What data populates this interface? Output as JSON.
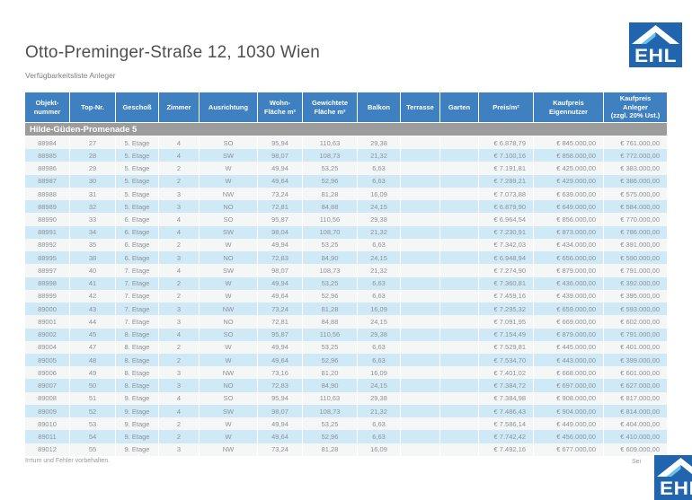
{
  "page": {
    "title": "Otto-Preminger-Straße 12, 1030 Wien",
    "subtitle": "Verfügbarkeitsliste Anleger",
    "footer_left": "Irrtum und Fehler vorbehalten.",
    "footer_right": "Sei"
  },
  "logo": {
    "text": "EHL"
  },
  "colors": {
    "header_bg": "#3f80c1",
    "section_bg": "#9c9c9c",
    "stripe_light": "#f5f6f6",
    "stripe_blue": "#cfe9f6",
    "logo_bg": "#2065ad",
    "logo_roof_accent": "#66c2e8",
    "cell_text": "#8d9398"
  },
  "table": {
    "section_header": "Hilde-Güden-Promenade 5",
    "columns": [
      {
        "key": "objektnummer",
        "label": "Objekt-\nnummer",
        "width": 50,
        "align": "center"
      },
      {
        "key": "top_nr",
        "label": "Top-Nr.",
        "width": 51,
        "align": "center"
      },
      {
        "key": "geschoss",
        "label": "Geschoß",
        "width": 48,
        "align": "center"
      },
      {
        "key": "zimmer",
        "label": "Zimmer",
        "width": 45,
        "align": "center"
      },
      {
        "key": "ausrichtung",
        "label": "Ausrichtung",
        "width": 65,
        "align": "center"
      },
      {
        "key": "wohnflaeche",
        "label": "Wohn-\nFläche m²",
        "width": 50,
        "align": "center"
      },
      {
        "key": "gewichtete_flaeche",
        "label": "Gewichtete\nFläche m²",
        "width": 61,
        "align": "center"
      },
      {
        "key": "balkon",
        "label": "Balkon",
        "width": 48,
        "align": "center"
      },
      {
        "key": "terrasse",
        "label": "Terrasse",
        "width": 44,
        "align": "center"
      },
      {
        "key": "garten",
        "label": "Garten",
        "width": 43,
        "align": "center"
      },
      {
        "key": "preis_m2",
        "label": "Preis/m²",
        "width": 61,
        "align": "right"
      },
      {
        "key": "kaufpreis_eigennutzer",
        "label": "Kaufpreis\nEigennutzer",
        "width": 78,
        "align": "right"
      },
      {
        "key": "kaufpreis_anleger",
        "label": "Kaufpreis\nAnleger\n(zzgl. 20% Ust.)",
        "width": 70,
        "align": "right"
      }
    ],
    "rows": [
      [
        "88984",
        "27",
        "5. Etage",
        "4",
        "SO",
        "95,94",
        "110,63",
        "29,38",
        "",
        "",
        "€ 6.878,79",
        "€ 845.000,00",
        "€ 761.000,00"
      ],
      [
        "88985",
        "28",
        "5. Etage",
        "4",
        "SW",
        "98,07",
        "108,73",
        "21,32",
        "",
        "",
        "€ 7.100,16",
        "€ 858.000,00",
        "€ 772.000,00"
      ],
      [
        "88986",
        "29",
        "5. Etage",
        "2",
        "W",
        "49,94",
        "53,25",
        "6,63",
        "",
        "",
        "€ 7.191,81",
        "€ 425.000,00",
        "€ 383.000,00"
      ],
      [
        "88987",
        "30",
        "5. Etage",
        "2",
        "W",
        "49,64",
        "52,96",
        "6,63",
        "",
        "",
        "€ 7.289,21",
        "€ 429.000,00",
        "€ 386.000,00"
      ],
      [
        "88988",
        "31",
        "5. Etage",
        "3",
        "NW",
        "73,24",
        "81,28",
        "16,09",
        "",
        "",
        "€ 7.073,88",
        "€ 639.000,00",
        "€ 575.000,00"
      ],
      [
        "88989",
        "32",
        "5. Etage",
        "3",
        "NO",
        "72,81",
        "84,88",
        "24,15",
        "",
        "",
        "€ 6.879,90",
        "€ 649.000,00",
        "€ 584.000,00"
      ],
      [
        "88990",
        "33",
        "6. Etage",
        "4",
        "SO",
        "95,87",
        "110,56",
        "29,38",
        "",
        "",
        "€ 6.964,54",
        "€ 856.000,00",
        "€ 770.000,00"
      ],
      [
        "88991",
        "34",
        "6. Etage",
        "4",
        "SW",
        "98,04",
        "108,70",
        "21,32",
        "",
        "",
        "€ 7.230,91",
        "€ 873.000,00",
        "€ 786.000,00"
      ],
      [
        "88992",
        "35",
        "6. Etage",
        "2",
        "W",
        "49,94",
        "53,25",
        "6,63",
        "",
        "",
        "€ 7.342,03",
        "€ 434.000,00",
        "€ 391.000,00"
      ],
      [
        "88995",
        "38",
        "6. Etage",
        "3",
        "NO",
        "72,83",
        "84,90",
        "24,15",
        "",
        "",
        "€ 6.948,94",
        "€ 656.000,00",
        "€ 590.000,00"
      ],
      [
        "88997",
        "40",
        "7. Etage",
        "4",
        "SW",
        "98,07",
        "108,73",
        "21,32",
        "",
        "",
        "€ 7.274,90",
        "€ 879.000,00",
        "€ 791.000,00"
      ],
      [
        "88998",
        "41",
        "7. Etage",
        "2",
        "W",
        "49,94",
        "53,25",
        "6,63",
        "",
        "",
        "€ 7.360,81",
        "€ 436.000,00",
        "€ 392.000,00"
      ],
      [
        "88999",
        "42",
        "7. Etage",
        "2",
        "W",
        "49,64",
        "52,96",
        "6,63",
        "",
        "",
        "€ 7.459,16",
        "€ 439.000,00",
        "€ 395.000,00"
      ],
      [
        "89000",
        "43",
        "7. Etage",
        "3",
        "NW",
        "73,24",
        "81,28",
        "16,09",
        "",
        "",
        "€ 7.295,32",
        "€ 659.000,00",
        "€ 593.000,00"
      ],
      [
        "89001",
        "44",
        "7. Etage",
        "3",
        "NO",
        "72,81",
        "84,88",
        "24,15",
        "",
        "",
        "€ 7.091,95",
        "€ 669.000,00",
        "€ 602.000,00"
      ],
      [
        "89002",
        "45",
        "8. Etage",
        "4",
        "SO",
        "95,87",
        "110,56",
        "29,38",
        "",
        "",
        "€ 7.154,49",
        "€ 879.000,00",
        "€ 791.000,00"
      ],
      [
        "89004",
        "47",
        "8. Etage",
        "2",
        "W",
        "49,94",
        "53,25",
        "6,63",
        "",
        "",
        "€ 7.529,81",
        "€ 445.000,00",
        "€ 401.000,00"
      ],
      [
        "89005",
        "48",
        "8. Etage",
        "2",
        "W",
        "49,64",
        "52,96",
        "6,63",
        "",
        "",
        "€ 7.534,70",
        "€ 443.000,00",
        "€ 399.000,00"
      ],
      [
        "89006",
        "49",
        "8. Etage",
        "3",
        "NW",
        "73,16",
        "81,20",
        "16,09",
        "",
        "",
        "€ 7.401,02",
        "€ 668.000,00",
        "€ 601.000,00"
      ],
      [
        "89007",
        "50",
        "8. Etage",
        "3",
        "NO",
        "72,83",
        "84,90",
        "24,15",
        "",
        "",
        "€ 7.384,72",
        "€ 697.000,00",
        "€ 627.000,00"
      ],
      [
        "89008",
        "51",
        "9. Etage",
        "4",
        "SO",
        "95,94",
        "110,63",
        "29,38",
        "",
        "",
        "€ 7.384,98",
        "€ 908.000,00",
        "€ 817.000,00"
      ],
      [
        "89009",
        "52",
        "9. Etage",
        "4",
        "SW",
        "98,07",
        "108,73",
        "21,32",
        "",
        "",
        "€ 7.486,43",
        "€ 904.000,00",
        "€ 814.000,00"
      ],
      [
        "89010",
        "53",
        "9. Etage",
        "2",
        "W",
        "49,94",
        "53,25",
        "6,63",
        "",
        "",
        "€ 7.586,14",
        "€ 449.000,00",
        "€ 404.000,00"
      ],
      [
        "89011",
        "54",
        "9. Etage",
        "2",
        "W",
        "49,64",
        "52,96",
        "6,63",
        "",
        "",
        "€ 7.742,42",
        "€ 456.000,00",
        "€ 410.000,00"
      ],
      [
        "89012",
        "55",
        "9. Etage",
        "3",
        "NW",
        "73,24",
        "81,28",
        "16,09",
        "",
        "",
        "€ 7.492,16",
        "€ 677.000,00",
        "€ 609.000,00"
      ]
    ]
  }
}
